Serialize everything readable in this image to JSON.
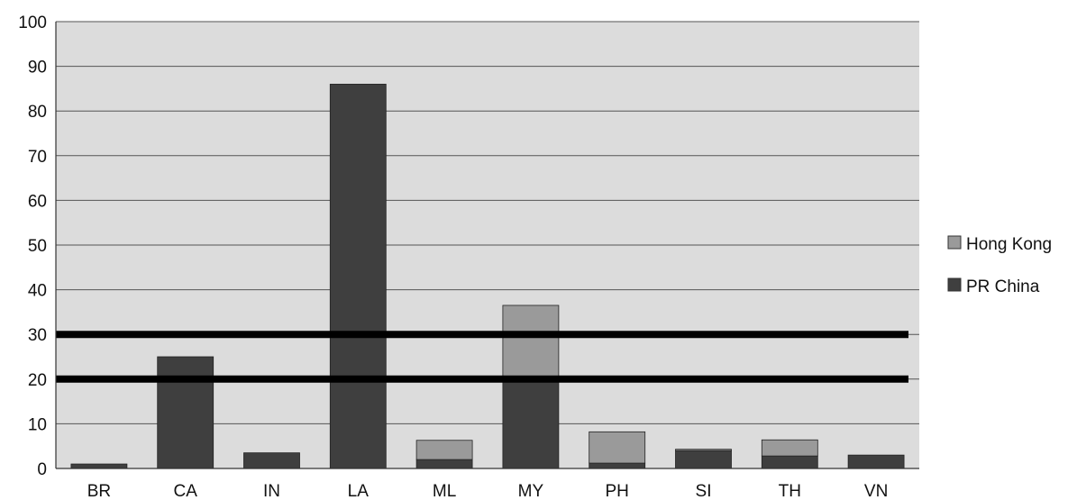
{
  "colors": {
    "hong_kong": "#9a9a9a",
    "pr_china": "#3f3f3f",
    "plot_background": "#dcdcdc",
    "gridline": "#555555",
    "threshold_line": "#000000"
  },
  "chart_data": {
    "type": "bar",
    "stacked": true,
    "categories": [
      "BR",
      "CA",
      "IN",
      "LA",
      "ML",
      "MY",
      "PH",
      "SI",
      "TH",
      "VN"
    ],
    "series": [
      {
        "name": "PR China",
        "values": [
          1,
          25,
          3.5,
          86,
          2,
          20.5,
          1.2,
          4,
          2.8,
          3
        ]
      },
      {
        "name": "Hong Kong",
        "values": [
          0,
          0,
          0,
          0,
          4.3,
          16,
          7,
          0.3,
          3.6,
          0
        ]
      }
    ],
    "y_ticks": [
      "0",
      "10",
      "20",
      "30",
      "40",
      "50",
      "60",
      "70",
      "80",
      "90",
      "100"
    ],
    "ylim": [
      0,
      100
    ],
    "reference_lines": [
      20,
      30
    ],
    "grid": true,
    "legend": {
      "position": "right",
      "items": [
        "Hong Kong",
        "PR China"
      ]
    },
    "title": "",
    "xlabel": "",
    "ylabel": ""
  }
}
